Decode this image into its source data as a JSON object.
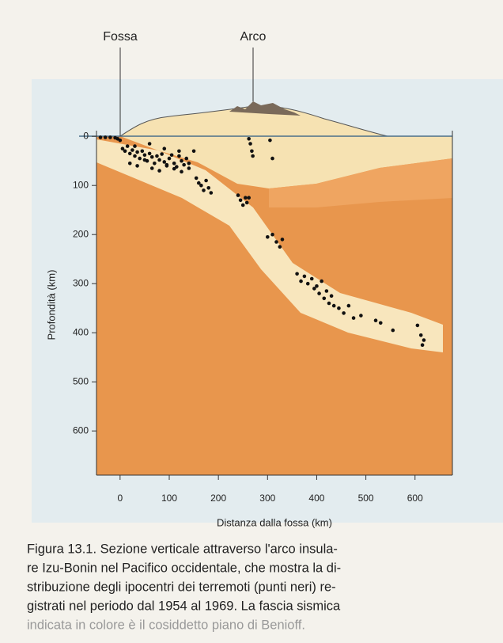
{
  "chart_data": {
    "type": "scatter",
    "annotations": [
      "Fossa",
      "Arco"
    ],
    "ylabel": "Profondità (km)",
    "xlabel": "Distanza dalla fossa (km)",
    "caption": [
      "Figura 13.1. Sezione verticale attraverso l'arco insula-",
      "re Izu-Bonin nel Pacifico occidentale, che mostra la di-",
      "stribuzione degli ipocentri dei terremoti (punti neri) re-",
      "gistrati nel periodo dal 1954 al 1969. La fascia sismica",
      "indicata in colore è il cosiddetto piano di Benioff."
    ],
    "color": "#111111",
    "x": [
      -40,
      -30,
      -20,
      -10,
      -5,
      0,
      262,
      265,
      268,
      270,
      305,
      310,
      5,
      10,
      15,
      20,
      25,
      30,
      35,
      40,
      45,
      50,
      55,
      60,
      65,
      70,
      75,
      80,
      85,
      90,
      95,
      100,
      105,
      110,
      115,
      120,
      125,
      130,
      135,
      140,
      20,
      35,
      50,
      65,
      80,
      95,
      110,
      125,
      140,
      30,
      60,
      90,
      120,
      150,
      155,
      160,
      165,
      170,
      175,
      180,
      185,
      240,
      245,
      250,
      255,
      258,
      262,
      300,
      310,
      318,
      325,
      330,
      360,
      368,
      375,
      382,
      390,
      395,
      400,
      405,
      410,
      415,
      420,
      425,
      430,
      435,
      445,
      455,
      465,
      475,
      490,
      520,
      530,
      555,
      605,
      612,
      618,
      615
    ],
    "values": [
      2,
      2,
      2,
      3,
      5,
      8,
      5,
      15,
      30,
      40,
      8,
      45,
      25,
      30,
      20,
      35,
      28,
      40,
      32,
      45,
      30,
      38,
      50,
      35,
      42,
      55,
      40,
      48,
      36,
      52,
      60,
      45,
      38,
      55,
      62,
      40,
      50,
      58,
      45,
      65,
      55,
      60,
      48,
      65,
      70,
      58,
      66,
      72,
      55,
      20,
      15,
      25,
      30,
      30,
      85,
      95,
      100,
      110,
      90,
      105,
      115,
      120,
      130,
      140,
      125,
      135,
      125,
      205,
      200,
      215,
      225,
      210,
      280,
      295,
      285,
      300,
      290,
      310,
      305,
      320,
      295,
      330,
      315,
      340,
      325,
      345,
      350,
      360,
      345,
      370,
      365,
      375,
      380,
      395,
      385,
      405,
      415,
      425
    ],
    "xlim": [
      -48,
      676
    ],
    "ylim": [
      -10,
      690
    ],
    "xticks": [
      0,
      100,
      200,
      300,
      400,
      500,
      600
    ],
    "yticks": [
      0,
      100,
      200,
      300,
      400,
      500,
      600
    ]
  }
}
